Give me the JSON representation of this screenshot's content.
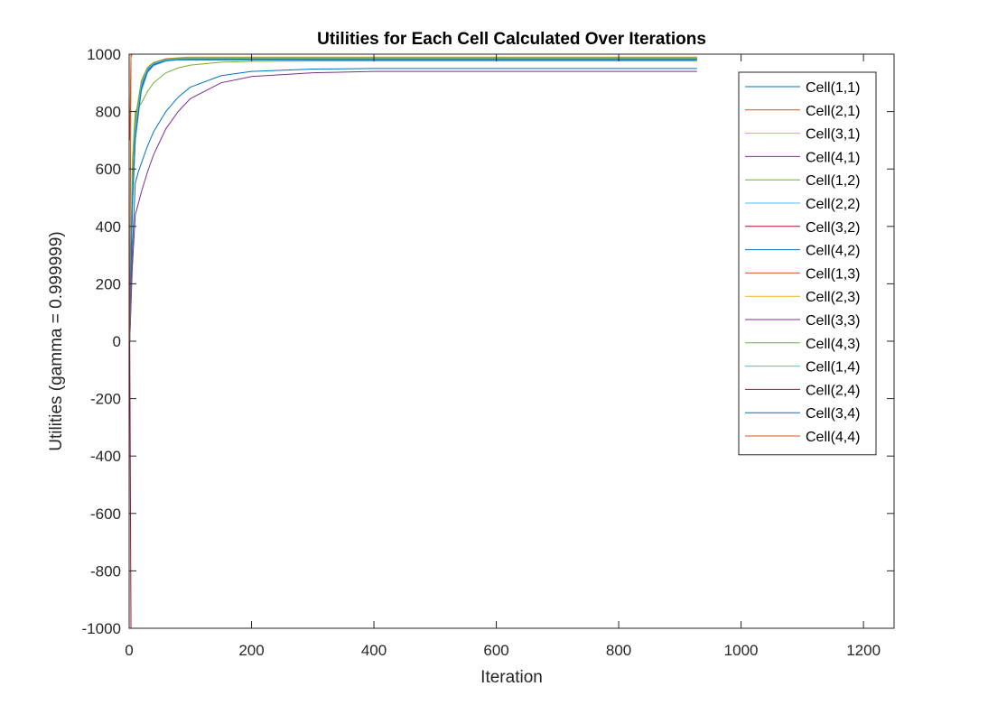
{
  "chart_data": {
    "type": "line",
    "title": "Utilities for Each Cell Calculated Over Iterations",
    "xlabel": "Iteration",
    "ylabel": "Utilities (gamma = 0.999999)",
    "xlim": [
      0,
      1250
    ],
    "ylim": [
      -1000,
      1000
    ],
    "xticks": [
      0,
      200,
      400,
      600,
      800,
      1000,
      1200
    ],
    "yticks": [
      -1000,
      -800,
      -600,
      -400,
      -200,
      0,
      200,
      400,
      600,
      800,
      1000
    ],
    "grid": false,
    "legend_position": "top-right",
    "series": [
      {
        "name": "Cell(1,1)",
        "color": "#0072BD",
        "x": [
          1,
          5,
          10,
          20,
          30,
          40,
          60,
          80,
          100,
          150,
          200,
          300,
          400,
          600,
          800,
          928
        ],
        "y": [
          0,
          450,
          700,
          880,
          940,
          965,
          978,
          980,
          980,
          980,
          980,
          980,
          980,
          980,
          980,
          980
        ]
      },
      {
        "name": "Cell(2,1)",
        "color": "#D95319",
        "x": [
          1,
          5,
          10,
          20,
          30,
          40,
          60,
          80,
          100,
          150,
          200,
          300,
          400,
          600,
          800,
          928
        ],
        "y": [
          0,
          500,
          750,
          900,
          950,
          970,
          982,
          985,
          985,
          985,
          985,
          985,
          985,
          985,
          985,
          985
        ]
      },
      {
        "name": "Cell(3,1)",
        "color": "#EDB120",
        "x": [
          1,
          5,
          10,
          20,
          30,
          40,
          60,
          80,
          100,
          150,
          200,
          300,
          400,
          600,
          800,
          928
        ],
        "y": [
          0,
          550,
          780,
          910,
          955,
          972,
          984,
          988,
          990,
          990,
          990,
          990,
          990,
          990,
          990,
          990
        ]
      },
      {
        "name": "Cell(4,1)",
        "color": "#7E2F8E",
        "x": [
          1,
          5,
          10,
          20,
          30,
          40,
          60,
          80,
          100,
          150,
          200,
          300,
          400,
          600,
          800,
          928
        ],
        "y": [
          0,
          480,
          720,
          890,
          945,
          968,
          980,
          984,
          985,
          985,
          985,
          985,
          985,
          985,
          985,
          985
        ]
      },
      {
        "name": "Cell(1,2)",
        "color": "#77AC30",
        "x": [
          1,
          5,
          10,
          20,
          30,
          40,
          60,
          80,
          100,
          150,
          200,
          300,
          400,
          600,
          800,
          928
        ],
        "y": [
          0,
          620,
          800,
          830,
          870,
          900,
          935,
          952,
          962,
          972,
          975,
          976,
          976,
          976,
          976,
          976
        ]
      },
      {
        "name": "Cell(2,2)",
        "color": "#4DBEEE",
        "x": [
          1,
          5,
          10,
          20,
          30,
          40,
          60,
          80,
          100,
          150,
          200,
          300,
          400,
          600,
          800,
          928
        ],
        "y": [
          0,
          460,
          700,
          870,
          935,
          960,
          976,
          980,
          982,
          982,
          982,
          982,
          982,
          982,
          982,
          982
        ]
      },
      {
        "name": "Cell(3,2)",
        "color": "#A2142F",
        "x": [
          1,
          5,
          10,
          20,
          30,
          40,
          60,
          80,
          100,
          150,
          200,
          300,
          400,
          600,
          800,
          928
        ],
        "y": [
          0,
          520,
          760,
          905,
          952,
          970,
          983,
          986,
          987,
          987,
          987,
          987,
          987,
          987,
          987,
          987
        ]
      },
      {
        "name": "Cell(4,2)",
        "color": "#0072BD",
        "x": [
          1,
          5,
          10,
          15,
          20,
          30,
          40,
          60,
          80,
          100,
          150,
          200,
          300,
          400,
          600,
          800,
          928
        ],
        "y": [
          0,
          300,
          550,
          590,
          620,
          680,
          730,
          800,
          850,
          885,
          925,
          940,
          948,
          950,
          950,
          950,
          950
        ]
      },
      {
        "name": "Cell(1,3)",
        "color": "#D95319",
        "x": [
          1,
          3,
          5,
          10,
          20,
          40,
          60,
          100,
          200,
          400,
          600,
          800,
          928
        ],
        "y": [
          700,
          990,
          1000,
          1000,
          1000,
          1000,
          1000,
          1000,
          1000,
          1000,
          1000,
          1000,
          1000
        ]
      },
      {
        "name": "Cell(2,3)",
        "color": "#EDB120",
        "x": [
          1,
          5,
          10,
          20,
          30,
          40,
          60,
          80,
          100,
          150,
          200,
          300,
          400,
          600,
          800,
          928
        ],
        "y": [
          0,
          510,
          740,
          900,
          950,
          968,
          980,
          984,
          985,
          985,
          985,
          985,
          985,
          985,
          985,
          985
        ]
      },
      {
        "name": "Cell(3,3)",
        "color": "#7E2F8E",
        "x": [
          1,
          5,
          10,
          15,
          20,
          30,
          40,
          60,
          80,
          100,
          150,
          200,
          300,
          400,
          600,
          800,
          928
        ],
        "y": [
          0,
          250,
          440,
          480,
          520,
          590,
          650,
          740,
          800,
          845,
          900,
          922,
          935,
          940,
          940,
          940,
          940
        ]
      },
      {
        "name": "Cell(4,3)",
        "color": "#77AC30",
        "x": [
          1,
          5,
          10,
          20,
          30,
          40,
          60,
          80,
          100,
          150,
          200,
          300,
          400,
          600,
          800,
          928
        ],
        "y": [
          0,
          530,
          770,
          905,
          952,
          970,
          982,
          986,
          987,
          987,
          987,
          987,
          987,
          987,
          987,
          987
        ]
      },
      {
        "name": "Cell(1,4)",
        "color": "#4DBEEE",
        "x": [
          1,
          5,
          10,
          20,
          30,
          40,
          60,
          80,
          100,
          150,
          200,
          300,
          400,
          600,
          800,
          928
        ],
        "y": [
          0,
          490,
          730,
          895,
          948,
          968,
          980,
          983,
          984,
          984,
          984,
          984,
          984,
          984,
          984,
          984
        ]
      },
      {
        "name": "Cell(2,4)",
        "color": "#A2142F",
        "x": [
          1,
          3,
          5,
          10,
          20,
          40,
          100,
          200,
          400,
          600,
          800,
          928
        ],
        "y": [
          0,
          -1000,
          -1000,
          -1000,
          -1000,
          -1000,
          -1000,
          -1000,
          -1000,
          -1000,
          -1000,
          -1000
        ]
      },
      {
        "name": "Cell(3,4)",
        "color": "#0072BD",
        "x": [
          1,
          5,
          10,
          20,
          30,
          40,
          60,
          80,
          100,
          150,
          200,
          300,
          400,
          600,
          800,
          928
        ],
        "y": [
          0,
          470,
          710,
          880,
          940,
          963,
          977,
          981,
          982,
          982,
          982,
          982,
          982,
          982,
          982,
          982
        ]
      },
      {
        "name": "Cell(4,4)",
        "color": "#D95319",
        "x": [
          1,
          3,
          5,
          10,
          20,
          40,
          100,
          200,
          400,
          600,
          800,
          928
        ],
        "y": [
          0,
          1000,
          1000,
          1000,
          1000,
          1000,
          1000,
          1000,
          1000,
          1000,
          1000,
          1000
        ]
      }
    ]
  }
}
